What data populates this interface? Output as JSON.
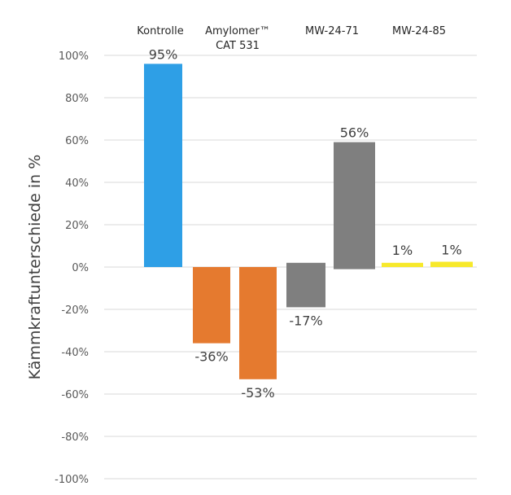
{
  "chart_data": {
    "type": "bar",
    "title": "",
    "xlabel": "",
    "ylabel": "Kämmkraftunterschiede in %",
    "ylim": [
      -100,
      100
    ],
    "yticks": [
      100,
      80,
      60,
      40,
      20,
      0,
      -20,
      -40,
      -60,
      -80,
      -100
    ],
    "ytick_labels": [
      "100%",
      "80%",
      "60%",
      "40%",
      "20%",
      "0%",
      "-20%",
      "-40%",
      "-60%",
      "-80%",
      "-100%"
    ],
    "grid": true,
    "group_labels": [
      {
        "lines": [
          "Kontrolle"
        ]
      },
      {
        "lines": [
          "Amylomer™",
          "CAT 531"
        ]
      },
      {
        "lines": [
          "MW-24-71"
        ]
      },
      {
        "lines": [
          "MW-24-85"
        ]
      }
    ],
    "bars": [
      {
        "group": "Kontrolle",
        "value": 95,
        "label": "95%",
        "color": "#2E9FE6",
        "base": 0,
        "top": 96
      },
      {
        "group": "Amylomer™ CAT 531",
        "value": -36,
        "label": "-36%",
        "color": "#E57A2F",
        "base": 0,
        "top": -36
      },
      {
        "group": "Amylomer™ CAT 531",
        "value": -53,
        "label": "-53%",
        "color": "#E57A2F",
        "base": 0,
        "top": -53
      },
      {
        "group": "MW-24-71",
        "value": -17,
        "label": "-17%",
        "color": "#7F7F7F",
        "base": 2,
        "top": -19
      },
      {
        "group": "MW-24-71",
        "value": 56,
        "label": "56%",
        "color": "#7F7F7F",
        "base": -1,
        "top": 59
      },
      {
        "group": "MW-24-85",
        "value": 1,
        "label": "1%",
        "color": "#F7E92B",
        "base": 0,
        "top": 2
      },
      {
        "group": "MW-24-85",
        "value": 1,
        "label": "1%",
        "color": "#F7E92B",
        "base": 0,
        "top": 2.5
      }
    ]
  }
}
